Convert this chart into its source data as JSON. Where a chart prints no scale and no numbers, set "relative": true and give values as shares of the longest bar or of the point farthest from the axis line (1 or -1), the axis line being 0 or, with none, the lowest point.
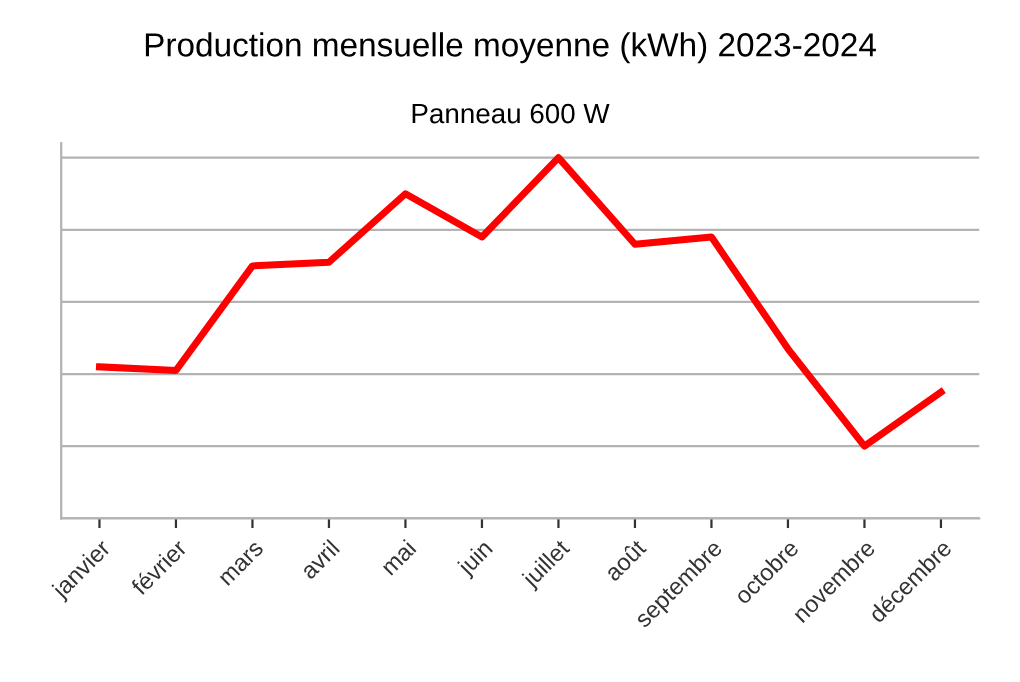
{
  "chart_data": {
    "type": "line",
    "title": "Production mensuelle moyenne (kWh) 2023-2024",
    "subtitle": "Panneau 600 W",
    "categories": [
      "janvier",
      "février",
      "mars",
      "avril",
      "mai",
      "juin",
      "juillet",
      "août",
      "septembre",
      "octobre",
      "novembre",
      "décembre"
    ],
    "series": [
      {
        "color": "#ff0000",
        "values": [
          0.42,
          0.41,
          0.7,
          0.71,
          0.9,
          0.78,
          1.0,
          0.76,
          0.78,
          0.47,
          0.2,
          0.35
        ]
      }
    ],
    "relative": true,
    "grid": "y",
    "line_style": "solid",
    "marker": "none"
  }
}
